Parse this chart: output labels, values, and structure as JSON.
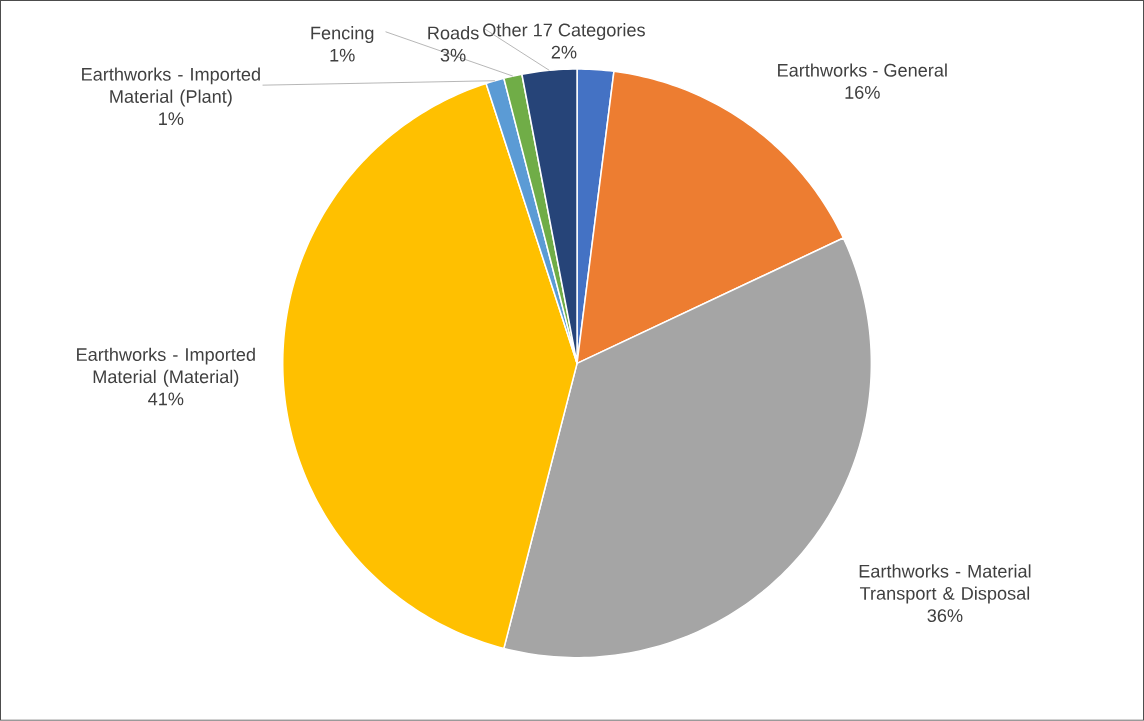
{
  "chart_data": {
    "type": "pie",
    "categories": [
      "Other 17 Categories",
      "Earthworks - General",
      "Earthworks - Material Transport & Disposal",
      "Earthworks - Imported Material (Material)",
      "Earthworks - Imported Material (Plant)",
      "Fencing",
      "Roads"
    ],
    "values": [
      2,
      16,
      36,
      41,
      1,
      1,
      3
    ],
    "value_labels": [
      "2%",
      "16%",
      "36%",
      "41%",
      "1%",
      "1%",
      "3%"
    ],
    "colors": [
      "#4472c4",
      "#ed7d31",
      "#a5a5a5",
      "#ffc000",
      "#5b9bd5",
      "#70ad47",
      "#264478"
    ]
  }
}
